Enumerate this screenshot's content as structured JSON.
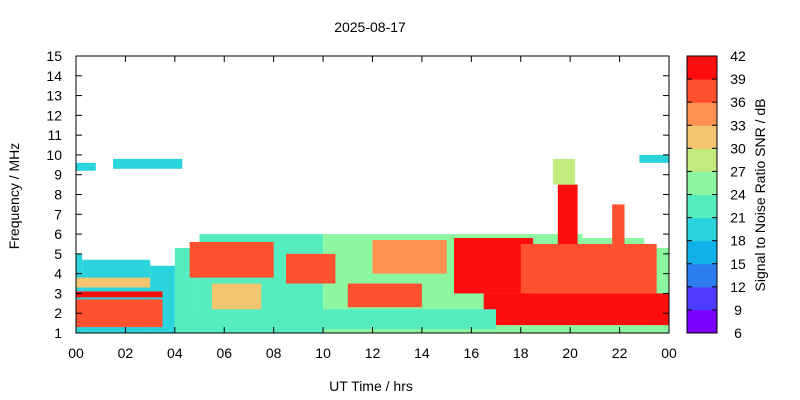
{
  "chart_data": {
    "type": "heatmap",
    "title": "2025-08-17",
    "xlabel": "UT Time / hrs",
    "ylabel": "Frequency / MHz",
    "colorbar_label": "Signal to Noise Ratio SNR / dB",
    "xlim": [
      0,
      24
    ],
    "ylim": [
      1,
      15
    ],
    "x_ticks": [
      "00",
      "02",
      "04",
      "06",
      "08",
      "10",
      "12",
      "14",
      "16",
      "18",
      "20",
      "22",
      "00"
    ],
    "y_ticks": [
      "1",
      "2",
      "3",
      "4",
      "5",
      "6",
      "7",
      "8",
      "9",
      "10",
      "11",
      "12",
      "13",
      "14",
      "15"
    ],
    "colorbar_ticks": [
      "6",
      "9",
      "12",
      "15",
      "18",
      "21",
      "24",
      "27",
      "30",
      "33",
      "36",
      "39",
      "42"
    ],
    "colorbar_range": [
      6,
      42
    ],
    "colorbar_colors": [
      "#7a00ff",
      "#4f3bff",
      "#2d7df0",
      "#12b0ea",
      "#2bd3dc",
      "#55ecc0",
      "#8cf7a0",
      "#c3ea7e",
      "#f4c570",
      "#ff9050",
      "#ff5030",
      "#ff0d0d"
    ],
    "grid": false,
    "regions": [
      {
        "t_start": 0.0,
        "t_end": 0.25,
        "f_min": 1.0,
        "f_max": 5.0,
        "snr": 20
      },
      {
        "t_start": 0.25,
        "t_end": 3.0,
        "f_min": 1.0,
        "f_max": 4.7,
        "snr": 20
      },
      {
        "t_start": 3.0,
        "t_end": 4.0,
        "f_min": 1.0,
        "f_max": 4.4,
        "snr": 19
      },
      {
        "t_start": 4.0,
        "t_end": 5.0,
        "f_min": 1.0,
        "f_max": 5.3,
        "snr": 22
      },
      {
        "t_start": 5.0,
        "t_end": 10.0,
        "f_min": 1.0,
        "f_max": 6.0,
        "snr": 23
      },
      {
        "t_start": 10.0,
        "t_end": 17.5,
        "f_min": 1.0,
        "f_max": 6.0,
        "snr": 24
      },
      {
        "t_start": 17.5,
        "t_end": 20.5,
        "f_min": 1.0,
        "f_max": 6.0,
        "snr": 26
      },
      {
        "t_start": 20.5,
        "t_end": 23.0,
        "f_min": 1.0,
        "f_max": 5.8,
        "snr": 25
      },
      {
        "t_start": 23.0,
        "t_end": 24.0,
        "f_min": 1.0,
        "f_max": 5.3,
        "snr": 24
      },
      {
        "t_start": 0.0,
        "t_end": 3.5,
        "f_min": 1.3,
        "f_max": 2.7,
        "snr": 36
      },
      {
        "t_start": 0.0,
        "t_end": 3.5,
        "f_min": 2.8,
        "f_max": 3.1,
        "snr": 39
      },
      {
        "t_start": 0.0,
        "t_end": 3.0,
        "f_min": 3.3,
        "f_max": 3.8,
        "snr": 30
      },
      {
        "t_start": 4.6,
        "t_end": 8.0,
        "f_min": 3.8,
        "f_max": 5.6,
        "snr": 38
      },
      {
        "t_start": 5.5,
        "t_end": 7.5,
        "f_min": 2.0,
        "f_max": 3.5,
        "snr": 30
      },
      {
        "t_start": 8.5,
        "t_end": 10.5,
        "f_min": 3.5,
        "f_max": 5.0,
        "snr": 37
      },
      {
        "t_start": 11.0,
        "t_end": 14.0,
        "f_min": 2.3,
        "f_max": 3.5,
        "snr": 36
      },
      {
        "t_start": 12.0,
        "t_end": 15.0,
        "f_min": 4.0,
        "f_max": 5.7,
        "snr": 35
      },
      {
        "t_start": 15.3,
        "t_end": 18.5,
        "f_min": 3.0,
        "f_max": 5.8,
        "snr": 40
      },
      {
        "t_start": 16.5,
        "t_end": 24.0,
        "f_min": 1.4,
        "f_max": 3.0,
        "snr": 40
      },
      {
        "t_start": 18.0,
        "t_end": 23.5,
        "f_min": 3.0,
        "f_max": 5.5,
        "snr": 37
      },
      {
        "t_start": 19.5,
        "t_end": 20.3,
        "f_min": 5.5,
        "f_max": 8.5,
        "snr": 40
      },
      {
        "t_start": 21.7,
        "t_end": 22.2,
        "f_min": 5.0,
        "f_max": 7.5,
        "snr": 36
      },
      {
        "t_start": 5.0,
        "t_end": 17.0,
        "f_min": 1.2,
        "f_max": 2.2,
        "snr": 21
      },
      {
        "t_start": 0.0,
        "t_end": 0.8,
        "f_min": 9.2,
        "f_max": 9.6,
        "snr": 18
      },
      {
        "t_start": 1.5,
        "t_end": 4.3,
        "f_min": 9.3,
        "f_max": 9.8,
        "snr": 19
      },
      {
        "t_start": 19.3,
        "t_end": 20.2,
        "f_min": 8.5,
        "f_max": 9.8,
        "snr": 27
      },
      {
        "t_start": 22.8,
        "t_end": 24.0,
        "f_min": 9.6,
        "f_max": 10.0,
        "snr": 20
      }
    ]
  }
}
